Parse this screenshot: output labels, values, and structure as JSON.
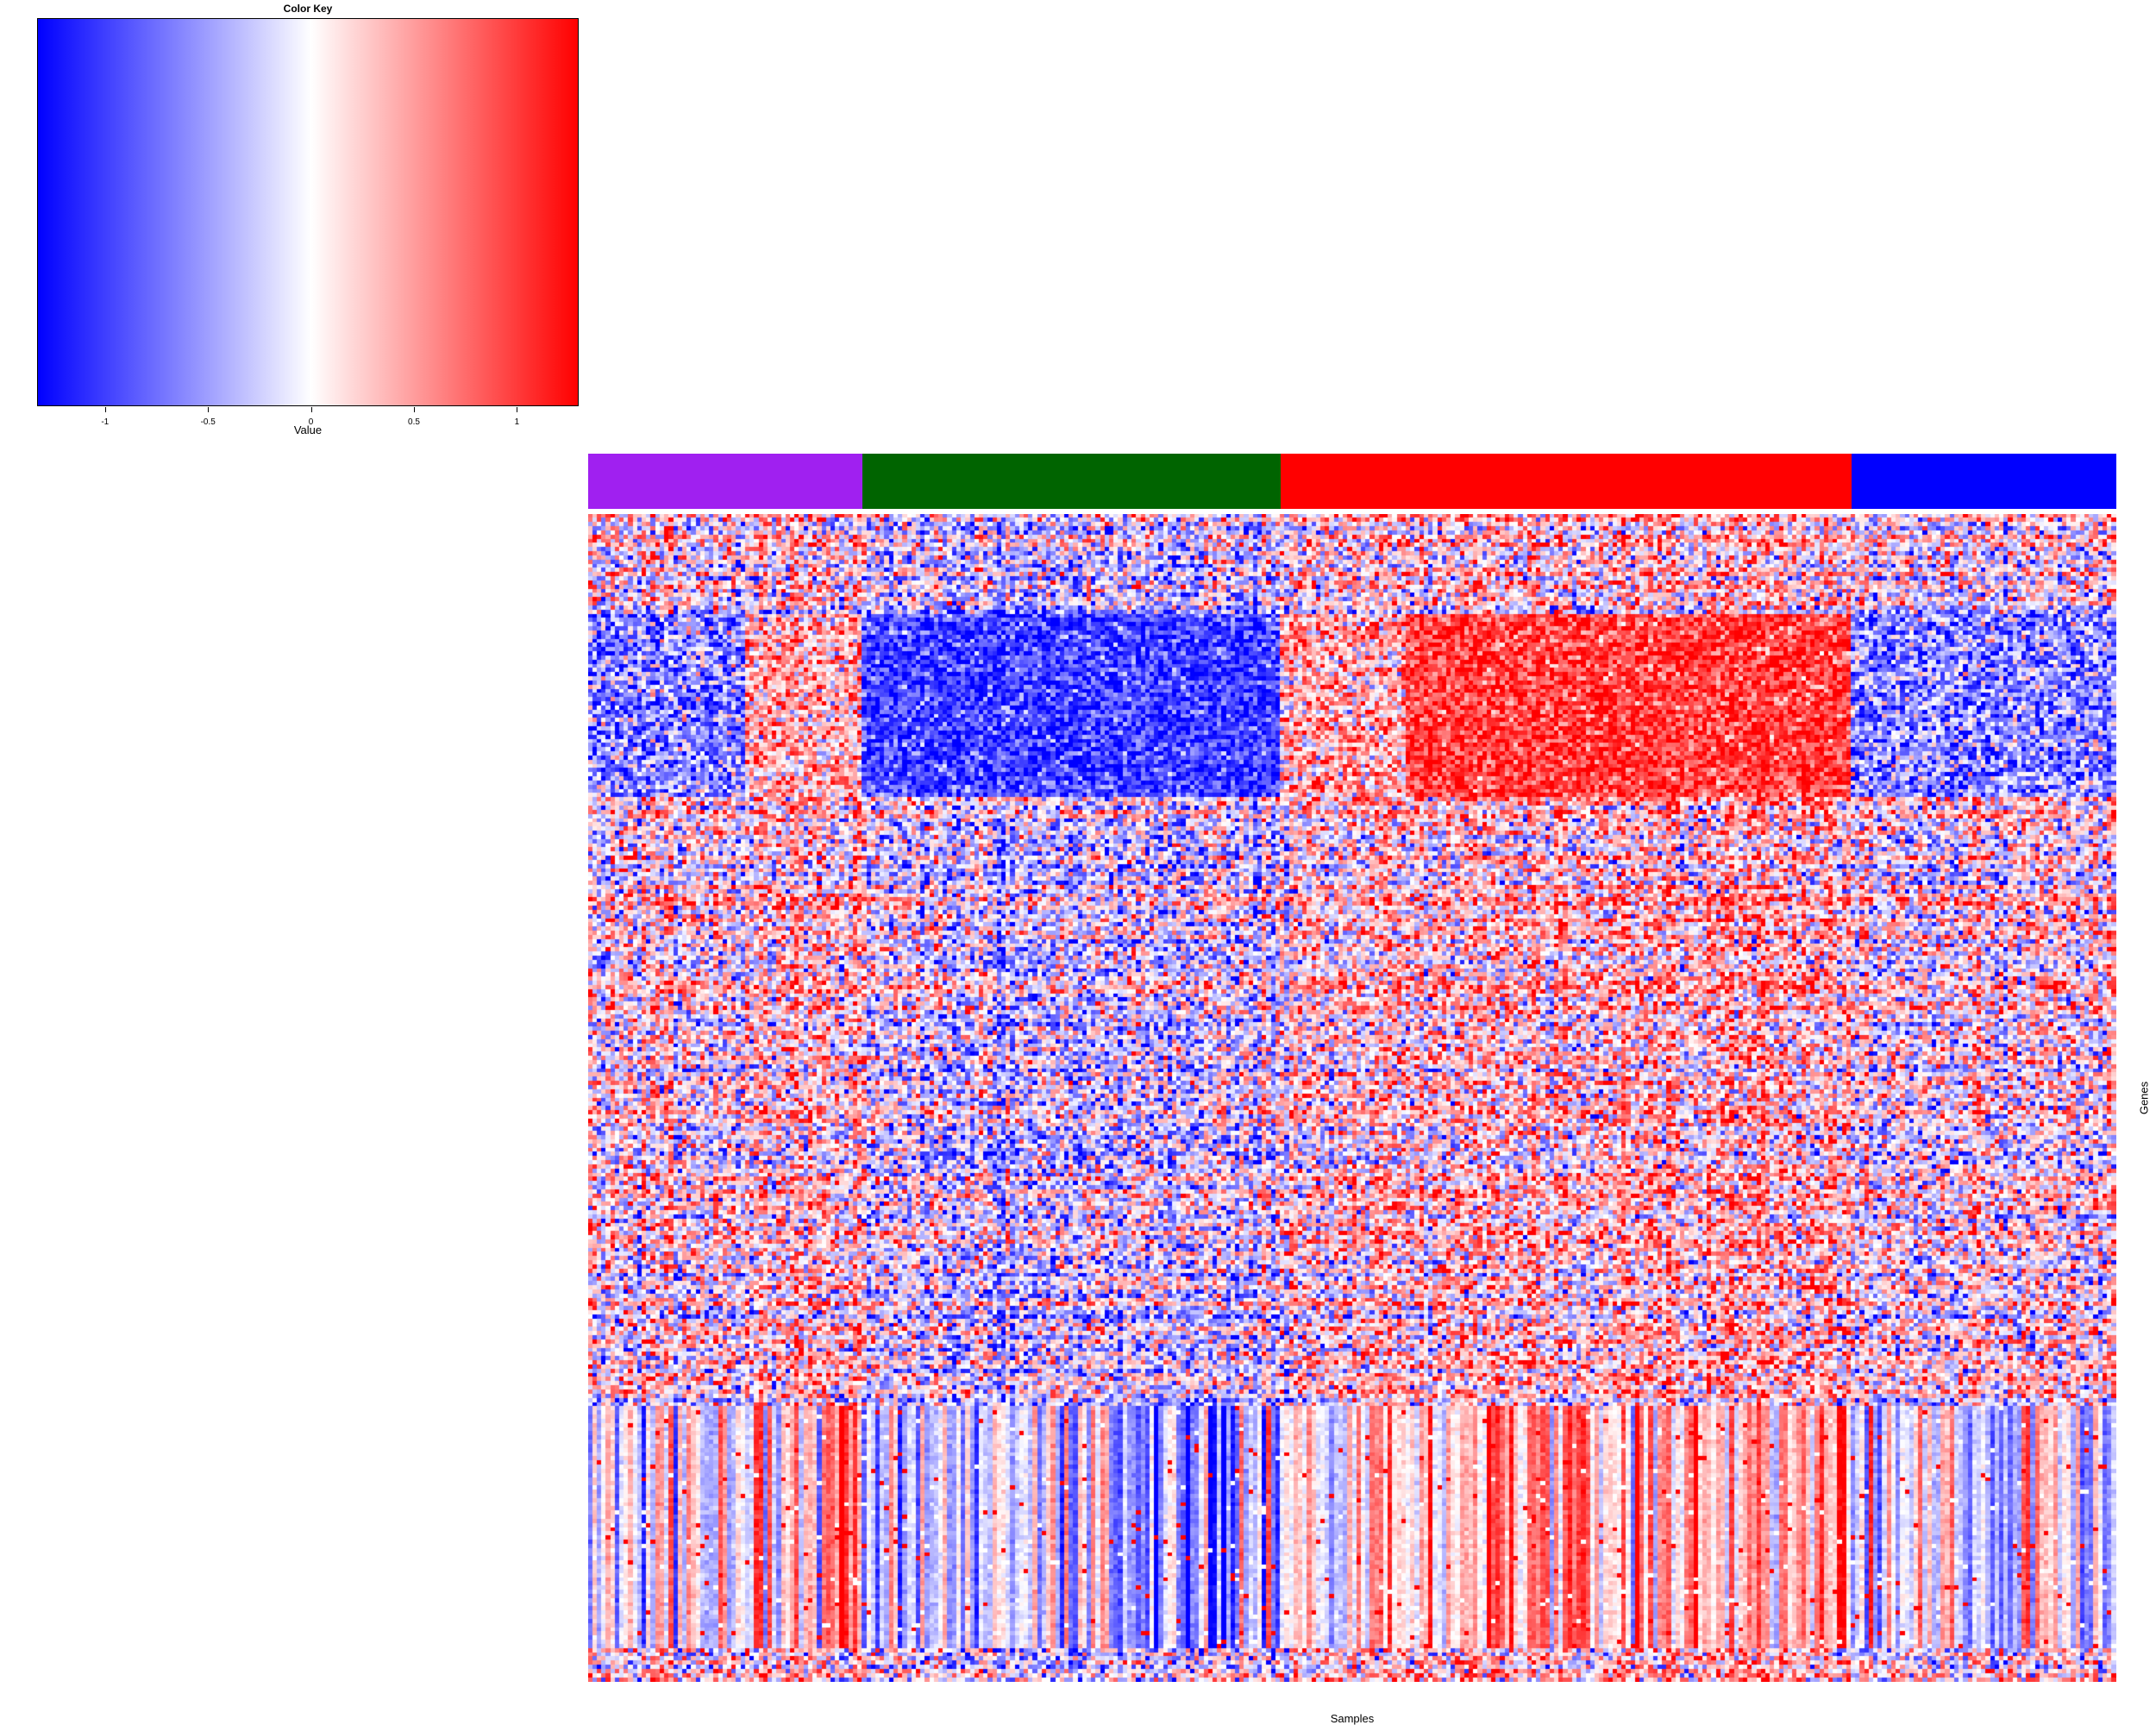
{
  "chart_data": {
    "type": "heatmap",
    "color_key": {
      "title": "Color Key",
      "xlabel": "Value",
      "range": [
        -1.33,
        1.3
      ],
      "colors": {
        "low": "#0000ff",
        "mid": "#ffffff",
        "high": "#ff0000"
      },
      "ticks": [
        {
          "value": -1,
          "label": "-1"
        },
        {
          "value": -0.5,
          "label": "-0.5"
        },
        {
          "value": 0,
          "label": "0"
        },
        {
          "value": 0.5,
          "label": "0.5"
        },
        {
          "value": 1,
          "label": "1"
        }
      ]
    },
    "xlabel": "Samples",
    "ylabel": "Genes",
    "n_rows": 280,
    "n_cols": 340,
    "column_groups": [
      {
        "color": "#a020f0",
        "count": 61
      },
      {
        "color": "#006400",
        "count": 93
      },
      {
        "color": "#ff0000",
        "count": 127
      },
      {
        "color": "#0000ff",
        "count": 59
      }
    ],
    "column_blocks": [
      {
        "count": 35,
        "pattern": "mixed"
      },
      {
        "count": 26,
        "pattern": "mixed-red"
      },
      {
        "count": 93,
        "pattern": "blue"
      },
      {
        "count": 28,
        "pattern": "mixed-red"
      },
      {
        "count": 99,
        "pattern": "red"
      },
      {
        "count": 59,
        "pattern": "mixed"
      }
    ],
    "row_blocks": [
      {
        "count": 24,
        "pattern": "mixed"
      },
      {
        "count": 44,
        "pattern": "core"
      },
      {
        "count": 40,
        "pattern": "mixed"
      },
      {
        "count": 30,
        "pattern": "mixed"
      },
      {
        "count": 45,
        "pattern": "mixed"
      },
      {
        "count": 31,
        "pattern": "mixed"
      },
      {
        "count": 58,
        "pattern": "column-stripes"
      },
      {
        "count": 8,
        "pattern": "mixed"
      }
    ]
  }
}
